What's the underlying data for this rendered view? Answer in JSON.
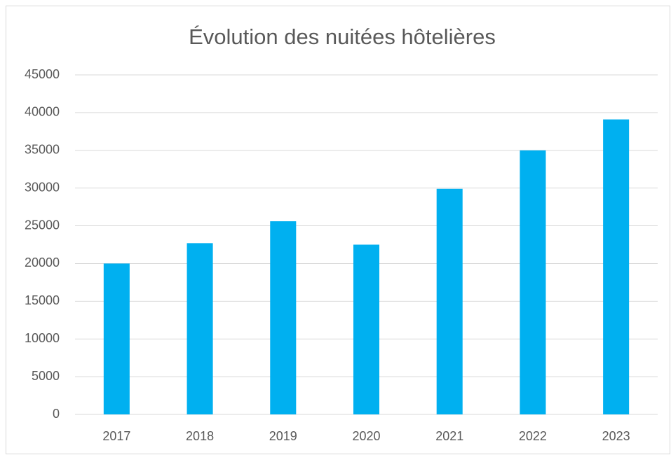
{
  "chart_data": {
    "type": "bar",
    "title": "Évolution des nuitées hôtelières",
    "categories": [
      "2017",
      "2018",
      "2019",
      "2020",
      "2021",
      "2022",
      "2023"
    ],
    "values": [
      20000,
      22700,
      25600,
      22500,
      29900,
      35000,
      39100
    ],
    "color": "#00b0f0",
    "ylim": [
      0,
      45000
    ],
    "yticks": [
      0,
      5000,
      10000,
      15000,
      20000,
      25000,
      30000,
      35000,
      40000,
      45000
    ],
    "grid": true
  }
}
